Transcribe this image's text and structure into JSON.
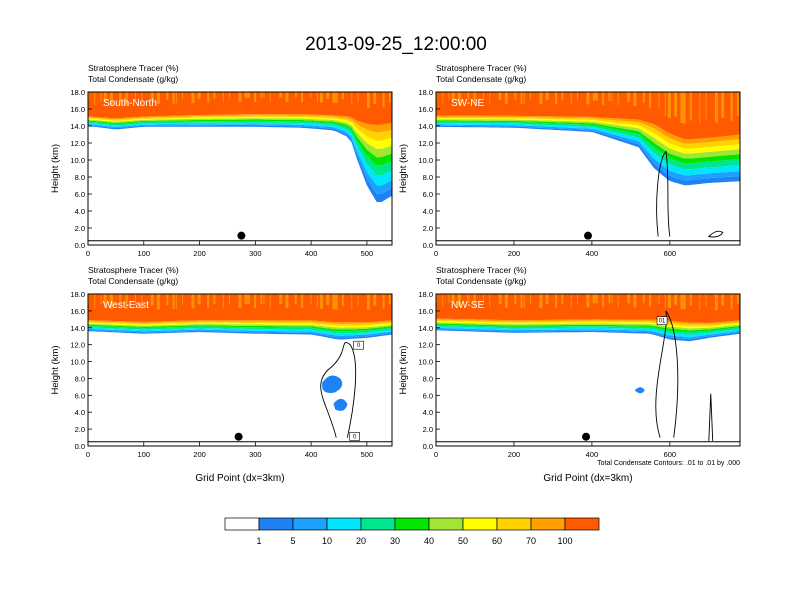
{
  "title": "2013-09-25_12:00:00",
  "colors": {
    "levels": [
      "#ffffff",
      "#1e82f5",
      "#1ea0ff",
      "#00e6ff",
      "#00e68c",
      "#00e600",
      "#a0e632",
      "#ffff00",
      "#ffd200",
      "#ffa000",
      "#ff5a00",
      "#ff0000"
    ],
    "contour": "#000000",
    "background": "#ffffff"
  },
  "chart_data": [
    {
      "type": "area",
      "id": "south-north",
      "panel_label": "South-North",
      "subtitle_line1": "Stratosphere Tracer   (%)",
      "subtitle_line2": "Total Condensate   (g/kg)",
      "ylabel": "Height (km)",
      "xlabel": "",
      "xlim": [
        0,
        545
      ],
      "ylim": [
        0,
        18
      ],
      "xticks": [
        0,
        100,
        200,
        300,
        400,
        500
      ],
      "yticks": [
        "0.0",
        "2.0",
        "4.0",
        "6.0",
        "8.0",
        "10.0",
        "12.0",
        "14.0",
        "16.0",
        "18.0"
      ],
      "marker": {
        "x": 275,
        "y": 1.1
      },
      "tracer_profile": {
        "x": [
          0,
          50,
          100,
          200,
          300,
          380,
          440,
          470,
          480,
          500,
          520,
          545
        ],
        "base_km": [
          14.0,
          13.6,
          13.9,
          13.9,
          13.9,
          13.8,
          13.5,
          12.6,
          10.5,
          7.0,
          4.8,
          5.8
        ],
        "top_km": [
          15.2,
          15.0,
          15.2,
          15.4,
          15.5,
          15.5,
          15.4,
          15.3,
          15.0,
          14.8,
          14.8,
          15.0
        ]
      }
    },
    {
      "type": "area",
      "id": "sw-ne",
      "panel_label": "SW-NE",
      "subtitle_line1": "Stratosphere Tracer   (%)",
      "subtitle_line2": "Total Condensate   (g/kg)",
      "ylabel": "Height (km)",
      "xlabel": "",
      "xlim": [
        0,
        780
      ],
      "ylim": [
        0,
        18
      ],
      "xticks": [
        0,
        200,
        400,
        600
      ],
      "yticks": [
        "0.0",
        "2.0",
        "4.0",
        "6.0",
        "8.0",
        "10.0",
        "12.0",
        "14.0",
        "16.0",
        "18.0"
      ],
      "marker": {
        "x": 390,
        "y": 1.1
      },
      "tracer_profile": {
        "x": [
          0,
          200,
          400,
          520,
          560,
          600,
          640,
          700,
          780
        ],
        "base_km": [
          13.9,
          13.8,
          13.3,
          11.5,
          9.0,
          7.5,
          7.0,
          7.3,
          7.5
        ],
        "top_km": [
          15.3,
          15.3,
          15.2,
          15.0,
          14.6,
          13.5,
          12.8,
          13.0,
          13.4
        ]
      }
    },
    {
      "type": "area",
      "id": "west-east",
      "panel_label": "West-East",
      "subtitle_line1": "Stratosphere Tracer   (%)",
      "subtitle_line2": "Total Condensate   (g/kg)",
      "ylabel": "Height (km)",
      "xlabel": "Grid Point (dx=3km)",
      "xlim": [
        0,
        545
      ],
      "ylim": [
        0,
        18
      ],
      "xticks": [
        0,
        100,
        200,
        300,
        400,
        500
      ],
      "yticks": [
        "0.0",
        "2.0",
        "4.0",
        "6.0",
        "8.0",
        "10.0",
        "12.0",
        "14.0",
        "16.0",
        "18.0"
      ],
      "marker": {
        "x": 270,
        "y": 1.1
      },
      "tracer_profile": {
        "x": [
          0,
          100,
          200,
          300,
          400,
          450,
          500,
          545
        ],
        "base_km": [
          13.6,
          13.3,
          13.5,
          13.3,
          13.2,
          12.6,
          12.8,
          13.2
        ],
        "top_km": [
          15.0,
          14.8,
          15.0,
          15.0,
          15.0,
          14.8,
          14.8,
          15.0
        ]
      },
      "contour_labels": [
        "0",
        "0"
      ]
    },
    {
      "type": "area",
      "id": "nw-se",
      "panel_label": "NW-SE",
      "subtitle_line1": "Stratosphere Tracer   (%)",
      "subtitle_line2": "Total Condensate   (g/kg)",
      "ylabel": "Height (km)",
      "xlabel": "Grid Point (dx=3km)",
      "xlim": [
        0,
        780
      ],
      "ylim": [
        0,
        18
      ],
      "xticks": [
        0,
        200,
        400,
        600
      ],
      "yticks": [
        "0.0",
        "2.0",
        "4.0",
        "6.0",
        "8.0",
        "10.0",
        "12.0",
        "14.0",
        "16.0",
        "18.0"
      ],
      "marker": {
        "x": 385,
        "y": 1.1
      },
      "tracer_profile": {
        "x": [
          0,
          200,
          400,
          550,
          600,
          650,
          700,
          780
        ],
        "base_km": [
          13.7,
          13.4,
          13.5,
          13.3,
          12.6,
          12.4,
          12.8,
          13.3
        ],
        "top_km": [
          15.2,
          15.0,
          15.1,
          15.1,
          15.0,
          14.8,
          14.7,
          15.0
        ]
      },
      "contour_labels": [
        "01"
      ],
      "note": "Total Condensate Contours: .01 to .01 by .000"
    },
    {
      "type": "heatmap",
      "id": "colorbar",
      "legend_levels": [
        "1",
        "5",
        "10",
        "20",
        "30",
        "40",
        "50",
        "60",
        "70",
        "100"
      ],
      "units": "%"
    }
  ]
}
